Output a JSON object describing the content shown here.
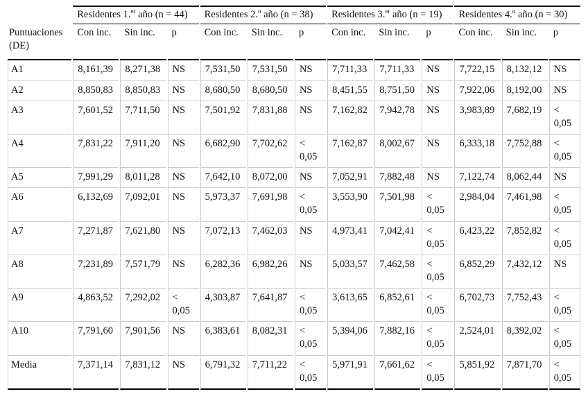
{
  "table": {
    "corner_label": "Puntuaciones (DE)",
    "groups": [
      {
        "pre": "Residentes 1.",
        "sup": "er",
        "post": " año (n = 44)"
      },
      {
        "pre": "Residentes 2.",
        "sup": "o",
        "post": " año (n = 38)"
      },
      {
        "pre": "Residentes 3.",
        "sup": "er",
        "post": " año (n = 19)"
      },
      {
        "pre": "Residentes 4.",
        "sup": "o",
        "post": " año (n = 30)"
      }
    ],
    "subheaders": [
      "Con inc.",
      "Sin inc.",
      "p"
    ],
    "rows": [
      {
        "label": "A1",
        "cells": [
          "8,161,39",
          "8,271,38",
          "NS",
          "7,531,50",
          "7,531,50",
          "NS",
          "7,711,33",
          "7,711,33",
          "NS",
          "7,722,15",
          "8,132,12",
          "NS"
        ]
      },
      {
        "label": "A2",
        "cells": [
          "8,850,83",
          "8,850,83",
          "NS",
          "8,680,50",
          "8,680,50",
          "NS",
          "8,451,55",
          "8,751,50",
          "NS",
          "7,922,06",
          "8,192,00",
          "NS"
        ]
      },
      {
        "label": "A3",
        "cells": [
          "7,601,52",
          "7,711,50",
          "NS",
          "7,501,92",
          "7,831,88",
          "NS",
          "7,162,82",
          "7,942,78",
          "NS",
          "3,983,89",
          "7,682,19",
          "< 0,05"
        ]
      },
      {
        "label": "A4",
        "cells": [
          "7,831,22",
          "7,911,20",
          "NS",
          "6,682,90",
          "7,702,62",
          "< 0,05",
          "7,162,87",
          "8,002,67",
          "NS",
          "6,333,18",
          "7,752,88",
          "< 0,05"
        ]
      },
      {
        "label": "A5",
        "cells": [
          "7,991,29",
          "8,011,28",
          "NS",
          "7,642,10",
          "8,072,00",
          "NS",
          "7,052,91",
          "7,882,48",
          "NS",
          "7,122,74",
          "8,062,44",
          "NS"
        ]
      },
      {
        "label": "A6",
        "cells": [
          "6,132,69",
          "7,092,01",
          "NS",
          "5,973,37",
          "7,691,98",
          "< 0,05",
          "3,553,90",
          "7,501,98",
          "< 0,05",
          "2,984,04",
          "7,461,98",
          "< 0,05"
        ]
      },
      {
        "label": "A7",
        "cells": [
          "7,271,87",
          "7,621,80",
          "NS",
          "7,072,13",
          "7,462,03",
          "NS",
          "4,973,41",
          "7,042,41",
          "< 0,05",
          "6,423,22",
          "7,852,82",
          "< 0,05"
        ]
      },
      {
        "label": "A8",
        "cells": [
          "7,231,89",
          "7,571,79",
          "NS",
          "6,282,36",
          "6,982,26",
          "NS",
          "5,033,57",
          "7,462,58",
          "< 0,05",
          "6,852,29",
          "7,432,12",
          "NS"
        ]
      },
      {
        "label": "A9",
        "cells": [
          "4,863,52",
          "7,292,02",
          "< 0,05",
          "4,303,87",
          "7,641,87",
          "< 0,05",
          "3,613,65",
          "6,852,61",
          "< 0,05",
          "6,702,73",
          "7,752,43",
          "< 0,05"
        ]
      },
      {
        "label": "A10",
        "cells": [
          "7,791,60",
          "7,901,56",
          "NS",
          "6,383,61",
          "8,082,31",
          "< 0,05",
          "5,394,06",
          "7,882,16",
          "< 0,05",
          "2,524,01",
          "8,392,02",
          "< 0,05"
        ]
      },
      {
        "label": "Media",
        "cells": [
          "7,371,14",
          "7,831,12",
          "NS",
          "6,791,32",
          "7,711,22",
          "< 0,05",
          "5,971,91",
          "7,661,62",
          "< 0,05",
          "5,851,92",
          "7,871,70",
          "< 0,05"
        ]
      }
    ]
  },
  "colors": {
    "text": "#111111",
    "rule_heavy": "#000000",
    "rule_light": "#cccccc",
    "background": "#ffffff"
  }
}
